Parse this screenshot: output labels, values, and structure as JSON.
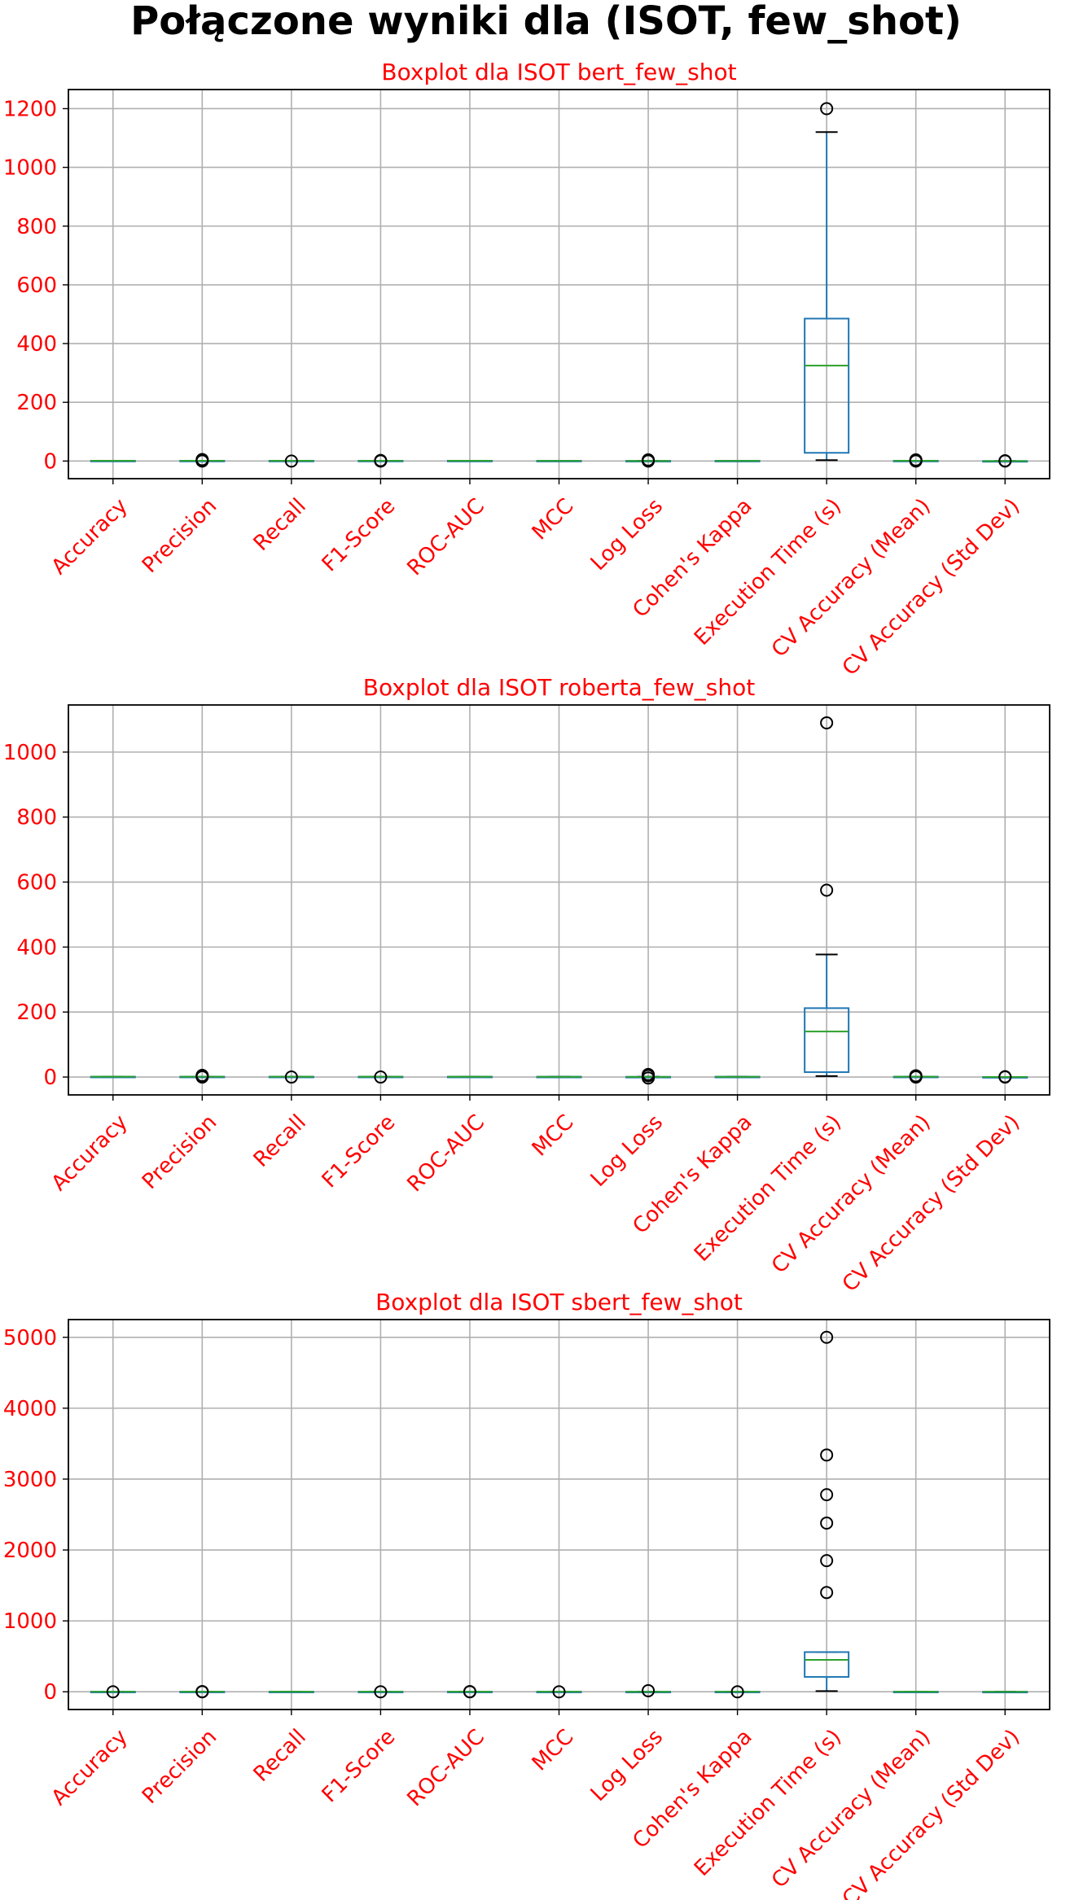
{
  "figure_title": "Połączone wyniki dla (ISOT, few_shot)",
  "colors": {
    "title": "#ff0000",
    "tick_labels": "#ff0000",
    "box": "#1f77b4",
    "median": "#2ca02c",
    "whisker": "#000000",
    "outlier": "#000000",
    "grid": "#b0b0b0"
  },
  "chart_data": [
    {
      "type": "boxplot",
      "title": "Boxplot dla ISOT bert_few_shot",
      "categories": [
        "Accuracy",
        "Precision",
        "Recall",
        "F1-Score",
        "ROC-AUC",
        "MCC",
        "Log Loss",
        "Cohen's Kappa",
        "Execution Time (s)",
        "CV Accuracy (Mean)",
        "CV Accuracy (Std Dev)"
      ],
      "yticks": [
        0,
        200,
        400,
        600,
        800,
        1000,
        1200
      ],
      "ylim": [
        -60,
        1265
      ],
      "grid": true,
      "boxes": [
        {
          "whislo": 0.5,
          "q1": 0.8,
          "med": 0.9,
          "q3": 1.0,
          "whishi": 1.0,
          "fliers": []
        },
        {
          "whislo": 0.5,
          "q1": 0.8,
          "med": 0.9,
          "q3": 1.0,
          "whishi": 1.0,
          "fliers": [
            0,
            3,
            5
          ]
        },
        {
          "whislo": 0.5,
          "q1": 0.8,
          "med": 0.9,
          "q3": 1.0,
          "whishi": 1.0,
          "fliers": [
            0
          ]
        },
        {
          "whislo": 0.5,
          "q1": 0.8,
          "med": 0.9,
          "q3": 1.0,
          "whishi": 1.0,
          "fliers": [
            0,
            2
          ]
        },
        {
          "whislo": 0.5,
          "q1": 0.8,
          "med": 0.9,
          "q3": 1.0,
          "whishi": 1.0,
          "fliers": []
        },
        {
          "whislo": 0.2,
          "q1": 0.6,
          "med": 0.8,
          "q3": 0.9,
          "whishi": 1.0,
          "fliers": []
        },
        {
          "whislo": 0.1,
          "q1": 0.3,
          "med": 0.4,
          "q3": 0.6,
          "whishi": 1.0,
          "fliers": [
            0,
            2,
            4
          ]
        },
        {
          "whislo": 0.2,
          "q1": 0.6,
          "med": 0.8,
          "q3": 0.9,
          "whishi": 1.0,
          "fliers": []
        },
        {
          "whislo": 3,
          "q1": 28,
          "med": 325,
          "q3": 485,
          "whishi": 1120,
          "fliers": [
            1200
          ]
        },
        {
          "whislo": 0.5,
          "q1": 0.8,
          "med": 0.9,
          "q3": 1.0,
          "whishi": 1.0,
          "fliers": [
            0,
            2,
            4
          ]
        },
        {
          "whislo": 0.0,
          "q1": 0.0,
          "med": 0.0,
          "q3": 0.0,
          "whishi": 0.0,
          "fliers": [
            0,
            1
          ]
        }
      ]
    },
    {
      "type": "boxplot",
      "title": "Boxplot dla ISOT roberta_few_shot",
      "categories": [
        "Accuracy",
        "Precision",
        "Recall",
        "F1-Score",
        "ROC-AUC",
        "MCC",
        "Log Loss",
        "Cohen's Kappa",
        "Execution Time (s)",
        "CV Accuracy (Mean)",
        "CV Accuracy (Std Dev)"
      ],
      "yticks": [
        0,
        200,
        400,
        600,
        800,
        1000
      ],
      "ylim": [
        -55,
        1145
      ],
      "grid": true,
      "boxes": [
        {
          "whislo": 0.5,
          "q1": 0.8,
          "med": 0.9,
          "q3": 1.0,
          "whishi": 1.0,
          "fliers": []
        },
        {
          "whislo": 0.5,
          "q1": 0.8,
          "med": 0.9,
          "q3": 1.0,
          "whishi": 1.0,
          "fliers": [
            0,
            3,
            5
          ]
        },
        {
          "whislo": 0.5,
          "q1": 0.8,
          "med": 0.9,
          "q3": 1.0,
          "whishi": 1.0,
          "fliers": [
            0
          ]
        },
        {
          "whislo": 0.5,
          "q1": 0.8,
          "med": 0.9,
          "q3": 1.0,
          "whishi": 1.0,
          "fliers": [
            0
          ]
        },
        {
          "whislo": 0.5,
          "q1": 0.8,
          "med": 0.9,
          "q3": 1.0,
          "whishi": 1.0,
          "fliers": []
        },
        {
          "whislo": 0.2,
          "q1": 0.6,
          "med": 0.8,
          "q3": 0.9,
          "whishi": 1.0,
          "fliers": []
        },
        {
          "whislo": 0.1,
          "q1": 0.3,
          "med": 0.4,
          "q3": 0.6,
          "whishi": 1.0,
          "fliers": [
            -3,
            4,
            8
          ]
        },
        {
          "whislo": 0.2,
          "q1": 0.6,
          "med": 0.8,
          "q3": 0.9,
          "whishi": 1.0,
          "fliers": []
        },
        {
          "whislo": 3,
          "q1": 15,
          "med": 140,
          "q3": 212,
          "whishi": 377,
          "fliers": [
            575,
            1090
          ]
        },
        {
          "whislo": 0.5,
          "q1": 0.8,
          "med": 0.9,
          "q3": 1.0,
          "whishi": 1.0,
          "fliers": [
            0,
            2,
            4
          ]
        },
        {
          "whislo": 0.0,
          "q1": 0.0,
          "med": 0.0,
          "q3": 0.0,
          "whishi": 0.0,
          "fliers": [
            0,
            1
          ]
        }
      ]
    },
    {
      "type": "boxplot",
      "title": "Boxplot dla ISOT sbert_few_shot",
      "categories": [
        "Accuracy",
        "Precision",
        "Recall",
        "F1-Score",
        "ROC-AUC",
        "MCC",
        "Log Loss",
        "Cohen's Kappa",
        "Execution Time (s)",
        "CV Accuracy (Mean)",
        "CV Accuracy (Std Dev)"
      ],
      "yticks": [
        0,
        1000,
        2000,
        3000,
        4000,
        5000
      ],
      "ylim": [
        -250,
        5250
      ],
      "grid": true,
      "boxes": [
        {
          "whislo": 0.5,
          "q1": 0.8,
          "med": 0.9,
          "q3": 1.0,
          "whishi": 1.0,
          "fliers": [
            0
          ]
        },
        {
          "whislo": 0.5,
          "q1": 0.8,
          "med": 0.9,
          "q3": 1.0,
          "whishi": 1.0,
          "fliers": [
            0,
            3
          ]
        },
        {
          "whislo": 0.5,
          "q1": 0.8,
          "med": 0.9,
          "q3": 1.0,
          "whishi": 1.0,
          "fliers": []
        },
        {
          "whislo": 0.5,
          "q1": 0.8,
          "med": 0.9,
          "q3": 1.0,
          "whishi": 1.0,
          "fliers": [
            0
          ]
        },
        {
          "whislo": 0.5,
          "q1": 0.8,
          "med": 0.9,
          "q3": 1.0,
          "whishi": 1.0,
          "fliers": [
            0,
            2
          ]
        },
        {
          "whislo": 0.2,
          "q1": 0.6,
          "med": 0.8,
          "q3": 0.9,
          "whishi": 1.0,
          "fliers": [
            0
          ]
        },
        {
          "whislo": 0.1,
          "q1": 0.3,
          "med": 0.4,
          "q3": 0.6,
          "whishi": 1.0,
          "fliers": [
            15
          ]
        },
        {
          "whislo": 0.2,
          "q1": 0.6,
          "med": 0.8,
          "q3": 0.9,
          "whishi": 1.0,
          "fliers": [
            0
          ]
        },
        {
          "whislo": 10,
          "q1": 210,
          "med": 450,
          "q3": 560,
          "whishi": 560,
          "fliers": [
            1400,
            1850,
            2380,
            2780,
            3340,
            5000
          ]
        },
        {
          "whislo": 0.5,
          "q1": 0.8,
          "med": 0.9,
          "q3": 1.0,
          "whishi": 1.0,
          "fliers": []
        },
        {
          "whislo": 0.0,
          "q1": 0.0,
          "med": 0.0,
          "q3": 0.0,
          "whishi": 0.0,
          "fliers": []
        }
      ]
    }
  ]
}
